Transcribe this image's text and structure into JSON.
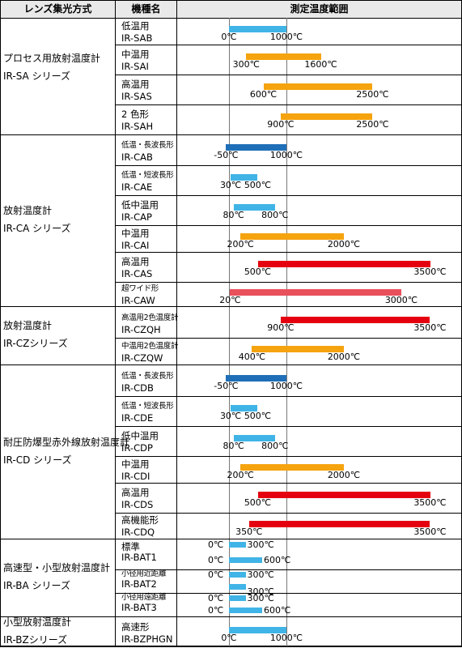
{
  "colors": {
    "blue": "#40b4e6",
    "darkblue": "#1f6fb8",
    "orange": "#f5a30f",
    "red": "#e5000f",
    "pink": "#e8505c"
  },
  "headers": {
    "col1": "レンズ集光方式",
    "col2": "機種名",
    "col3": "測定温度範囲"
  },
  "groups": [
    {
      "series": [
        "プロセス用放射温度計",
        "IR-SA シリーズ"
      ],
      "rows": [
        {
          "cat": "低温用",
          "model": "IR-SAB",
          "min": 0,
          "max": 1000,
          "lo": "0℃",
          "hi": "1000℃",
          "color": "blue"
        },
        {
          "cat": "中温用",
          "model": "IR-SAI",
          "min": 300,
          "max": 1600,
          "lo": "300℃",
          "hi": "1600℃",
          "color": "orange"
        },
        {
          "cat": "高温用",
          "model": "IR-SAS",
          "min": 600,
          "max": 2500,
          "lo": "600℃",
          "hi": "2500℃",
          "color": "orange"
        },
        {
          "cat": "2 色形",
          "model": "IR-SAH",
          "min": 900,
          "max": 2500,
          "lo": "900℃",
          "hi": "2500℃",
          "color": "orange"
        }
      ]
    },
    {
      "series": [
        "放射温度計",
        "IR-CA シリーズ"
      ],
      "rows": [
        {
          "cat": "低温・長波長形",
          "model": "IR-CAB",
          "min": -50,
          "max": 1000,
          "lo": "-50℃",
          "hi": "1000℃",
          "color": "darkblue",
          "small": true
        },
        {
          "cat": "低温・短波長形",
          "model": "IR-CAE",
          "min": 30,
          "max": 500,
          "lo": "30℃",
          "hi": "500℃",
          "color": "blue",
          "small": true
        },
        {
          "cat": "低中温用",
          "model": "IR-CAP",
          "min": 80,
          "max": 800,
          "lo": "80℃",
          "hi": "800℃",
          "color": "blue"
        },
        {
          "cat": "中温用",
          "model": "IR-CAI",
          "min": 200,
          "max": 2000,
          "lo": "200℃",
          "hi": "2000℃",
          "color": "orange"
        },
        {
          "cat": "高温用",
          "model": "IR-CAS",
          "min": 500,
          "max": 3500,
          "lo": "500℃",
          "hi": "3500℃",
          "color": "red"
        },
        {
          "cat": "超ワイド形",
          "model": "IR-CAW",
          "min": 20,
          "max": 3000,
          "lo": "20℃",
          "hi": "3000℃",
          "color": "pink",
          "small": true
        }
      ]
    },
    {
      "series": [
        "放射温度計",
        "IR-CZシリーズ"
      ],
      "rows": [
        {
          "cat": "高温用2色温度計",
          "model": "IR-CZQH",
          "min": 900,
          "max": 3500,
          "lo": "900℃",
          "hi": "3500℃",
          "color": "red",
          "small": true
        },
        {
          "cat": "中温用2色温度計",
          "model": "IR-CZQW",
          "min": 400,
          "max": 2000,
          "lo": "400℃",
          "hi": "2000℃",
          "color": "orange",
          "small": true
        }
      ]
    },
    {
      "series": [
        "耐圧防爆型赤外線放射温度計",
        "IR-CD シリーズ"
      ],
      "rows": [
        {
          "cat": "低温・長波長形",
          "model": "IR-CDB",
          "min": -50,
          "max": 1000,
          "lo": "-50℃",
          "hi": "1000℃",
          "color": "darkblue",
          "small": true
        },
        {
          "cat": "低温・短波長形",
          "model": "IR-CDE",
          "min": 30,
          "max": 500,
          "lo": "30℃",
          "hi": "500℃",
          "color": "blue",
          "small": true
        },
        {
          "cat": "低中温用",
          "model": "IR-CDP",
          "min": 80,
          "max": 800,
          "lo": "80℃",
          "hi": "800℃",
          "color": "blue"
        },
        {
          "cat": "中温用",
          "model": "IR-CDI",
          "min": 200,
          "max": 2000,
          "lo": "200℃",
          "hi": "2000℃",
          "color": "orange"
        },
        {
          "cat": "高温用",
          "model": "IR-CDS",
          "min": 500,
          "max": 3500,
          "lo": "500℃",
          "hi": "3500℃",
          "color": "red"
        },
        {
          "cat": "高機能形",
          "model": "IR-CDQ",
          "min": 350,
          "max": 3500,
          "lo": "350℃",
          "hi": "3500℃",
          "color": "red"
        }
      ]
    },
    {
      "series": [
        "高速型・小型放射温度計",
        "IR-BA シリーズ"
      ],
      "rows": [
        {
          "cat": "標準",
          "model": "IR-BAT1",
          "split": true,
          "color": "blue",
          "bars": [
            {
              "min": 0,
              "max": 300,
              "lo": "0℃",
              "hi": "300℃"
            },
            {
              "min": 0,
              "max": 600,
              "lo": "0℃",
              "hi": "600℃"
            }
          ]
        },
        {
          "cat": "小径用近距離",
          "model": "IR-BAT2",
          "split": true,
          "color": "blue",
          "small": true,
          "bars": [
            {
              "min": 0,
              "max": 300,
              "lo": "0℃",
              "hi": "300℃"
            },
            {
              "min": 0,
              "max": 300,
              "lo": "",
              "hi": "300℃"
            }
          ]
        },
        {
          "cat": "小径用遠距離",
          "model": "IR-BAT3",
          "split": true,
          "color": "blue",
          "small": true,
          "bars": [
            {
              "min": 0,
              "max": 300,
              "lo": "0℃",
              "hi": "300℃"
            },
            {
              "min": 0,
              "max": 600,
              "lo": "0℃",
              "hi": "600℃"
            }
          ]
        }
      ]
    },
    {
      "series": [
        "小型放射温度計",
        "IR-BZシリーズ"
      ],
      "rows": [
        {
          "cat": "高速形",
          "model": "IR-BZPHGN",
          "min": 0,
          "max": 1000,
          "lo": "0℃",
          "hi": "1000℃",
          "color": "blue"
        }
      ]
    }
  ]
}
